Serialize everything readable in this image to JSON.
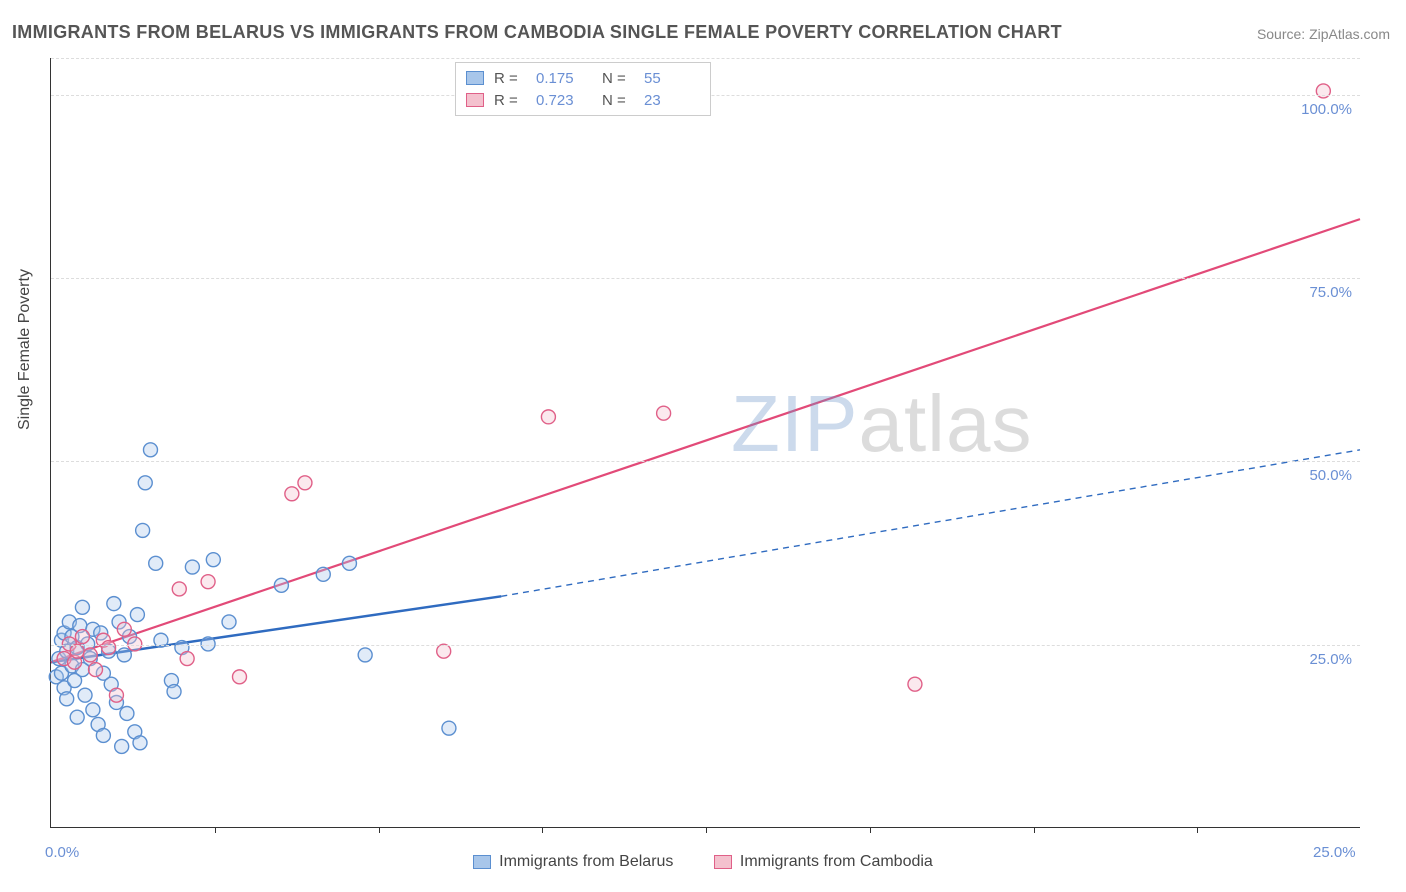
{
  "title": "IMMIGRANTS FROM BELARUS VS IMMIGRANTS FROM CAMBODIA SINGLE FEMALE POVERTY CORRELATION CHART",
  "source_label": "Source: ",
  "source_name": "ZipAtlas.com",
  "ylabel": "Single Female Poverty",
  "watermark_a": "ZIP",
  "watermark_b": "atlas",
  "chart": {
    "type": "scatter-with-regression",
    "background_color": "#ffffff",
    "grid_color": "#dddddd",
    "axis_color": "#333333",
    "axis_value_color": "#6a8fd4",
    "axis_fontsize": 15,
    "title_fontsize": 18,
    "label_fontsize": 16,
    "xlim": [
      0,
      25
    ],
    "ylim": [
      0,
      105
    ],
    "x_ticks": [
      0,
      25
    ],
    "x_tick_labels": [
      "0.0%",
      "25.0%"
    ],
    "x_minor_tick_step": 3.125,
    "y_gridlines": [
      25,
      50,
      75,
      100
    ],
    "y_tick_labels": [
      "25.0%",
      "50.0%",
      "75.0%",
      "100.0%"
    ],
    "marker_radius": 7,
    "marker_fill_opacity": 0.35,
    "marker_stroke_width": 1.4,
    "series": [
      {
        "name": "Immigrants from Belarus",
        "color_fill": "#a8c6ea",
        "color_stroke": "#5b8fd0",
        "legend_swatch_fill": "#a8c6ea",
        "legend_swatch_border": "#5b8fd0",
        "R": 0.175,
        "N": 55,
        "regression": {
          "solid": {
            "x1": 0,
            "y1": 22.5,
            "x2": 8.6,
            "y2": 31.5,
            "color": "#2f6bc0",
            "width": 2.5
          },
          "dashed": {
            "x1": 8.6,
            "y1": 31.5,
            "x2": 25,
            "y2": 51.5,
            "color": "#2f6bc0",
            "width": 1.4,
            "dash": "6 5"
          }
        },
        "points": [
          [
            0.1,
            20.5
          ],
          [
            0.15,
            23.0
          ],
          [
            0.2,
            25.5
          ],
          [
            0.2,
            21.0
          ],
          [
            0.25,
            19.0
          ],
          [
            0.25,
            26.5
          ],
          [
            0.3,
            24.0
          ],
          [
            0.3,
            17.5
          ],
          [
            0.35,
            28.0
          ],
          [
            0.4,
            22.0
          ],
          [
            0.4,
            26.0
          ],
          [
            0.45,
            20.0
          ],
          [
            0.5,
            24.5
          ],
          [
            0.5,
            15.0
          ],
          [
            0.55,
            27.5
          ],
          [
            0.6,
            21.5
          ],
          [
            0.6,
            30.0
          ],
          [
            0.65,
            18.0
          ],
          [
            0.7,
            25.0
          ],
          [
            0.75,
            23.0
          ],
          [
            0.8,
            16.0
          ],
          [
            0.8,
            27.0
          ],
          [
            0.9,
            14.0
          ],
          [
            0.95,
            26.5
          ],
          [
            1.0,
            21.0
          ],
          [
            1.0,
            12.5
          ],
          [
            1.1,
            24.0
          ],
          [
            1.15,
            19.5
          ],
          [
            1.2,
            30.5
          ],
          [
            1.25,
            17.0
          ],
          [
            1.3,
            28.0
          ],
          [
            1.35,
            11.0
          ],
          [
            1.4,
            23.5
          ],
          [
            1.45,
            15.5
          ],
          [
            1.5,
            26.0
          ],
          [
            1.6,
            13.0
          ],
          [
            1.65,
            29.0
          ],
          [
            1.7,
            11.5
          ],
          [
            1.75,
            40.5
          ],
          [
            1.8,
            47.0
          ],
          [
            1.9,
            51.5
          ],
          [
            2.0,
            36.0
          ],
          [
            2.1,
            25.5
          ],
          [
            2.3,
            20.0
          ],
          [
            2.35,
            18.5
          ],
          [
            2.5,
            24.5
          ],
          [
            2.7,
            35.5
          ],
          [
            3.0,
            25.0
          ],
          [
            3.1,
            36.5
          ],
          [
            3.4,
            28.0
          ],
          [
            4.4,
            33.0
          ],
          [
            5.2,
            34.5
          ],
          [
            5.7,
            36.0
          ],
          [
            6.0,
            23.5
          ],
          [
            7.6,
            13.5
          ]
        ]
      },
      {
        "name": "Immigrants from Cambodia",
        "color_fill": "#f4c1ce",
        "color_stroke": "#e06088",
        "legend_swatch_fill": "#f4c1ce",
        "legend_swatch_border": "#e06088",
        "R": 0.723,
        "N": 23,
        "regression": {
          "solid": {
            "x1": 0,
            "y1": 22.5,
            "x2": 25,
            "y2": 83.0,
            "color": "#e24a78",
            "width": 2.2
          }
        },
        "points": [
          [
            0.25,
            23.0
          ],
          [
            0.35,
            25.0
          ],
          [
            0.45,
            22.5
          ],
          [
            0.5,
            24.0
          ],
          [
            0.6,
            26.0
          ],
          [
            0.75,
            23.5
          ],
          [
            0.85,
            21.5
          ],
          [
            1.0,
            25.5
          ],
          [
            1.1,
            24.5
          ],
          [
            1.25,
            18.0
          ],
          [
            1.4,
            27.0
          ],
          [
            1.6,
            25.0
          ],
          [
            2.45,
            32.5
          ],
          [
            2.6,
            23.0
          ],
          [
            3.0,
            33.5
          ],
          [
            3.6,
            20.5
          ],
          [
            4.6,
            45.5
          ],
          [
            4.85,
            47.0
          ],
          [
            7.5,
            24.0
          ],
          [
            9.5,
            56.0
          ],
          [
            11.7,
            56.5
          ],
          [
            16.5,
            19.5
          ],
          [
            24.3,
            100.5
          ]
        ]
      }
    ]
  },
  "legend_top": {
    "r_label": "R  =",
    "n_label": "N  ="
  },
  "legend_bottom": {
    "items": [
      "Immigrants from Belarus",
      "Immigrants from Cambodia"
    ]
  }
}
